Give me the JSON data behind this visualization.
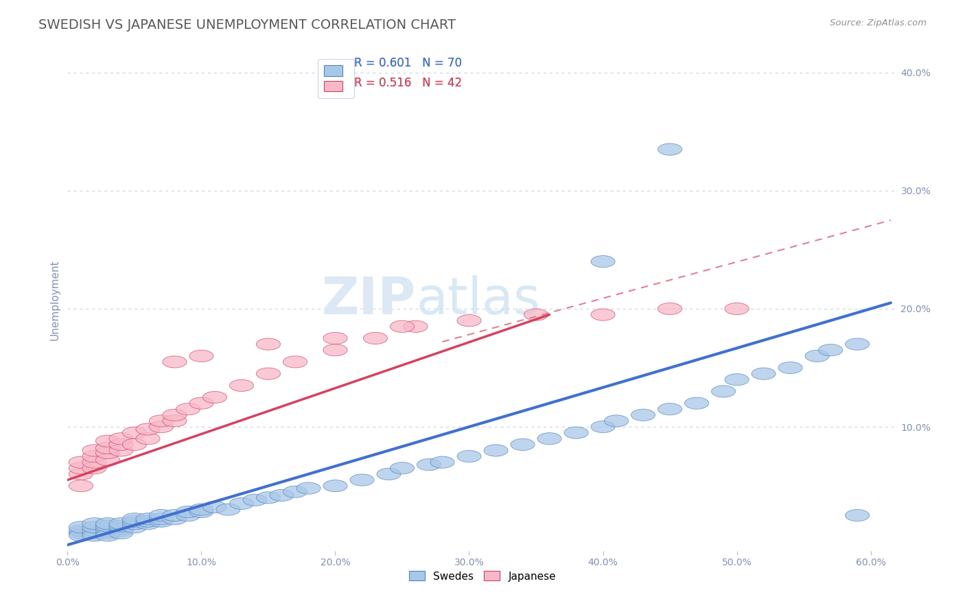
{
  "title": "SWEDISH VS JAPANESE UNEMPLOYMENT CORRELATION CHART",
  "source_text": "Source: ZipAtlas.com",
  "ylabel": "Unemployment",
  "xlim": [
    0.0,
    0.62
  ],
  "ylim": [
    -0.005,
    0.42
  ],
  "xticks": [
    0.0,
    0.1,
    0.2,
    0.3,
    0.4,
    0.5,
    0.6
  ],
  "xtick_labels": [
    "0.0%",
    "10.0%",
    "20.0%",
    "30.0%",
    "40.0%",
    "50.0%",
    "60.0%"
  ],
  "yticks": [
    0.0,
    0.1,
    0.2,
    0.3,
    0.4
  ],
  "ytick_labels": [
    "",
    "10.0%",
    "20.0%",
    "30.0%",
    "40.0%"
  ],
  "blue_R": 0.601,
  "blue_N": 70,
  "pink_R": 0.516,
  "pink_N": 42,
  "blue_color": "#a8c8e8",
  "pink_color": "#f8b8c8",
  "blue_edge_color": "#5080c0",
  "pink_edge_color": "#d04060",
  "blue_line_color": "#4070d0",
  "pink_line_color": "#d84060",
  "dash_line_color": "#e08090",
  "grid_color": "#c8d4e8",
  "background_color": "#ffffff",
  "watermark_color": "#dce8f4",
  "title_color": "#585858",
  "axis_color": "#8090b8",
  "blue_line_x": [
    0.0,
    0.615
  ],
  "blue_line_y": [
    0.0,
    0.205
  ],
  "pink_line_x": [
    0.0,
    0.36
  ],
  "pink_line_y": [
    0.055,
    0.195
  ],
  "dash_line_x": [
    0.28,
    0.615
  ],
  "dash_line_y": [
    0.172,
    0.275
  ],
  "blue_scatter_x": [
    0.01,
    0.01,
    0.01,
    0.01,
    0.02,
    0.02,
    0.02,
    0.02,
    0.02,
    0.03,
    0.03,
    0.03,
    0.03,
    0.03,
    0.03,
    0.04,
    0.04,
    0.04,
    0.04,
    0.04,
    0.05,
    0.05,
    0.05,
    0.05,
    0.06,
    0.06,
    0.06,
    0.07,
    0.07,
    0.07,
    0.08,
    0.08,
    0.09,
    0.09,
    0.1,
    0.1,
    0.11,
    0.12,
    0.13,
    0.14,
    0.15,
    0.16,
    0.17,
    0.18,
    0.2,
    0.22,
    0.24,
    0.25,
    0.27,
    0.28,
    0.3,
    0.32,
    0.34,
    0.36,
    0.38,
    0.4,
    0.41,
    0.43,
    0.45,
    0.47,
    0.49,
    0.5,
    0.52,
    0.54,
    0.56,
    0.57,
    0.59,
    0.59,
    0.4,
    0.45
  ],
  "blue_scatter_y": [
    0.01,
    0.012,
    0.008,
    0.015,
    0.01,
    0.012,
    0.008,
    0.015,
    0.018,
    0.01,
    0.012,
    0.014,
    0.008,
    0.016,
    0.018,
    0.012,
    0.014,
    0.01,
    0.016,
    0.018,
    0.015,
    0.018,
    0.02,
    0.022,
    0.018,
    0.02,
    0.022,
    0.02,
    0.022,
    0.025,
    0.022,
    0.025,
    0.025,
    0.028,
    0.028,
    0.03,
    0.032,
    0.03,
    0.035,
    0.038,
    0.04,
    0.042,
    0.045,
    0.048,
    0.05,
    0.055,
    0.06,
    0.065,
    0.068,
    0.07,
    0.075,
    0.08,
    0.085,
    0.09,
    0.095,
    0.1,
    0.105,
    0.11,
    0.115,
    0.12,
    0.13,
    0.14,
    0.145,
    0.15,
    0.16,
    0.165,
    0.17,
    0.025,
    0.24,
    0.335
  ],
  "pink_scatter_x": [
    0.01,
    0.01,
    0.01,
    0.01,
    0.02,
    0.02,
    0.02,
    0.02,
    0.03,
    0.03,
    0.03,
    0.03,
    0.04,
    0.04,
    0.04,
    0.05,
    0.05,
    0.06,
    0.06,
    0.07,
    0.07,
    0.08,
    0.08,
    0.09,
    0.1,
    0.11,
    0.13,
    0.15,
    0.17,
    0.2,
    0.23,
    0.26,
    0.08,
    0.1,
    0.15,
    0.2,
    0.25,
    0.3,
    0.35,
    0.4,
    0.45,
    0.5
  ],
  "pink_scatter_y": [
    0.05,
    0.06,
    0.065,
    0.07,
    0.065,
    0.07,
    0.075,
    0.08,
    0.072,
    0.078,
    0.082,
    0.088,
    0.08,
    0.085,
    0.09,
    0.085,
    0.095,
    0.09,
    0.098,
    0.1,
    0.105,
    0.105,
    0.11,
    0.115,
    0.12,
    0.125,
    0.135,
    0.145,
    0.155,
    0.165,
    0.175,
    0.185,
    0.155,
    0.16,
    0.17,
    0.175,
    0.185,
    0.19,
    0.195,
    0.195,
    0.2,
    0.2
  ]
}
